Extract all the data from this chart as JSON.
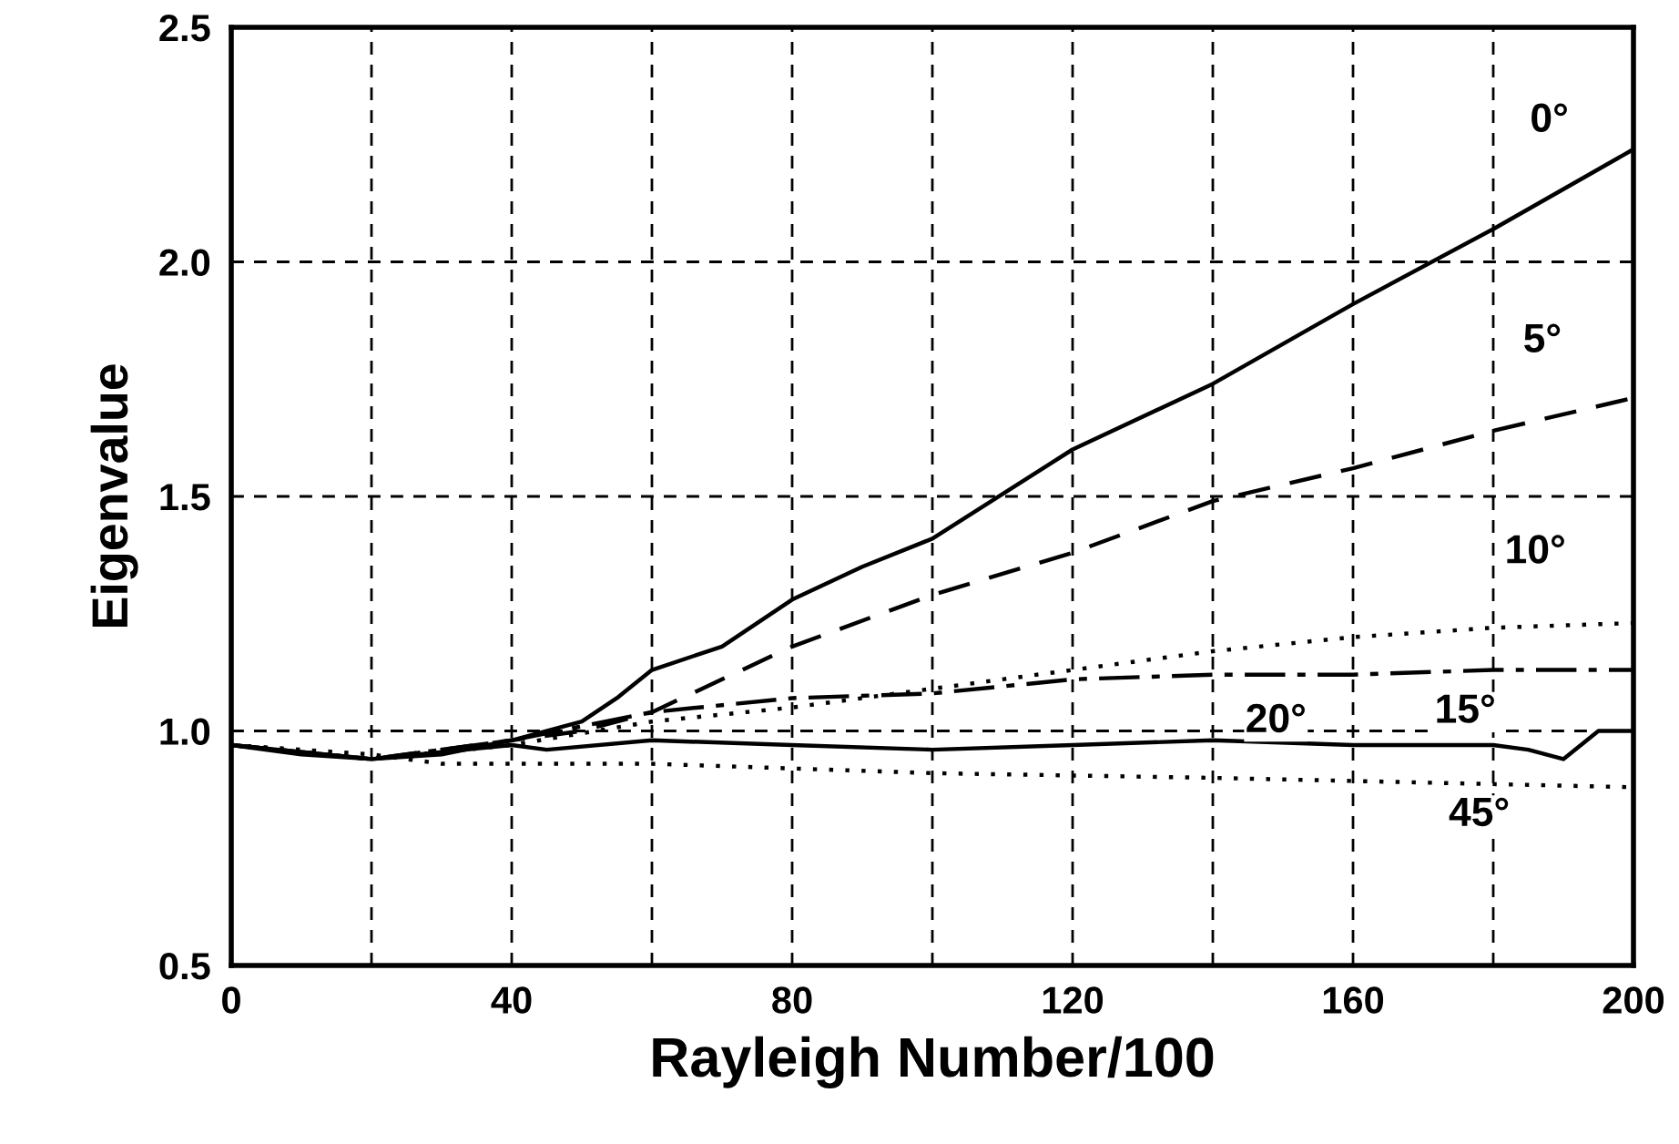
{
  "chart_data": {
    "type": "line",
    "xlabel": "Rayleigh Number/100",
    "ylabel": "Eigenvalue",
    "xlim": [
      0,
      200
    ],
    "ylim": [
      0.5,
      2.5
    ],
    "xticks": [
      0,
      {
        "value": 20,
        "label": null
      },
      40,
      {
        "value": 60,
        "label": null
      },
      80,
      {
        "value": 100,
        "label": null
      },
      120,
      {
        "value": 140,
        "label": null
      },
      160,
      {
        "value": 180,
        "label": null
      },
      200
    ],
    "yticks": [
      0.5,
      {
        "value": 1,
        "label": "1.0"
      },
      1.5,
      {
        "value": 2,
        "label": "2.0"
      },
      2.5
    ],
    "grid": true,
    "legend": false,
    "marker": "none",
    "series": [
      {
        "color": "#000000",
        "line_style": "solid",
        "x": [
          0,
          10,
          20,
          30,
          40,
          50,
          55,
          60,
          70,
          80,
          90,
          100,
          120,
          140,
          160,
          180,
          200
        ],
        "values": [
          0.97,
          0.95,
          0.94,
          0.95,
          0.98,
          1.02,
          1.07,
          1.13,
          1.18,
          1.28,
          1.35,
          1.41,
          1.6,
          1.74,
          1.91,
          2.07,
          2.24
        ]
      },
      {
        "color": "#000000",
        "line_style": "dashed",
        "x": [
          0,
          20,
          40,
          50,
          60,
          80,
          100,
          120,
          140,
          160,
          180,
          200
        ],
        "values": [
          0.97,
          0.94,
          0.98,
          1.0,
          1.04,
          1.18,
          1.29,
          1.38,
          1.49,
          1.56,
          1.64,
          1.71
        ]
      },
      {
        "color": "#000000",
        "line_style": "dotted",
        "x": [
          0,
          20,
          40,
          60,
          80,
          100,
          120,
          140,
          160,
          180,
          200
        ],
        "values": [
          0.97,
          0.94,
          0.97,
          1.02,
          1.05,
          1.09,
          1.13,
          1.17,
          1.2,
          1.22,
          1.23
        ]
      },
      {
        "color": "#000000",
        "line_style": "dashdot",
        "x": [
          0,
          20,
          40,
          60,
          80,
          100,
          120,
          140,
          160,
          180,
          200
        ],
        "values": [
          0.97,
          0.94,
          0.98,
          1.04,
          1.07,
          1.08,
          1.11,
          1.12,
          1.12,
          1.13,
          1.13
        ]
      },
      {
        "color": "#000000",
        "line_style": "solid",
        "x": [
          0,
          20,
          40,
          45,
          60,
          80,
          100,
          120,
          140,
          160,
          180,
          185,
          190,
          195,
          200
        ],
        "values": [
          0.97,
          0.94,
          0.97,
          0.96,
          0.98,
          0.97,
          0.96,
          0.97,
          0.98,
          0.97,
          0.97,
          0.96,
          0.94,
          1.0,
          1.0
        ]
      },
      {
        "color": "#000000",
        "line_style": "dotted",
        "x": [
          0,
          20,
          30,
          40,
          60,
          80,
          100,
          140,
          200
        ],
        "values": [
          0.97,
          0.95,
          0.93,
          0.93,
          0.93,
          0.92,
          0.91,
          0.9,
          0.88
        ]
      }
    ],
    "annotations": [
      {
        "text": "0°",
        "x": 188,
        "y": 2.3
      },
      {
        "text": "5°",
        "x": 187,
        "y": 1.83
      },
      {
        "text": "10°",
        "x": 186,
        "y": 1.38
      },
      {
        "text": "15°",
        "x": 176,
        "y": 1.04
      },
      {
        "text": "20°",
        "x": 149,
        "y": 1.02
      },
      {
        "text": "45°",
        "x": 178,
        "y": 0.82
      }
    ]
  }
}
